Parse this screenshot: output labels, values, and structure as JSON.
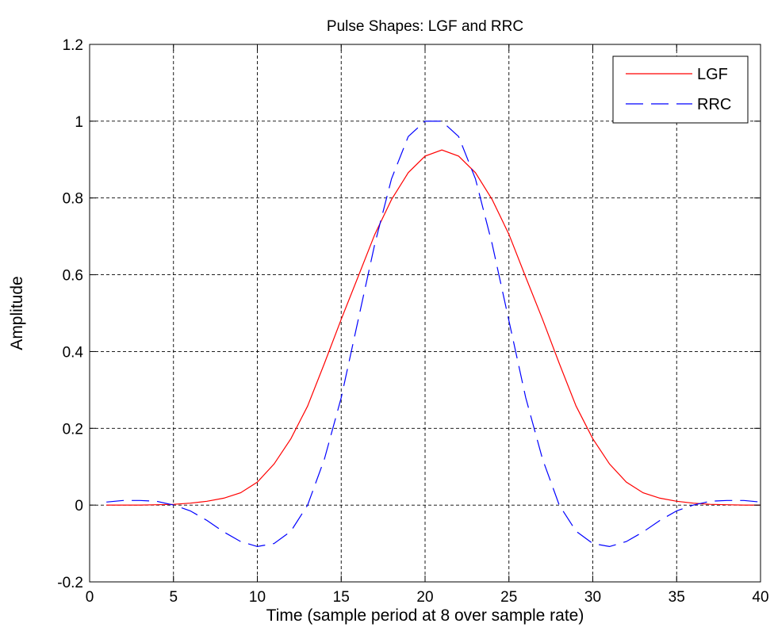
{
  "chart_data": {
    "type": "line",
    "title": "Pulse Shapes: LGF and RRC",
    "xlabel": "Time (sample period at 8 over sample rate)",
    "ylabel": "Amplitude",
    "xlim": [
      0,
      40
    ],
    "ylim": [
      -0.2,
      1.2
    ],
    "xticks": [
      0,
      5,
      10,
      15,
      20,
      25,
      30,
      35,
      40
    ],
    "yticks": [
      -0.2,
      0,
      0.2,
      0.4,
      0.6,
      0.8,
      1,
      1.2
    ],
    "xtick_labels": [
      "0",
      "5",
      "10",
      "15",
      "20",
      "25",
      "30",
      "35",
      "40"
    ],
    "ytick_labels": [
      "-0.2",
      "0",
      "0.2",
      "0.4",
      "0.6",
      "0.8",
      "1",
      "1.2"
    ],
    "grid": true,
    "legend_position": "top-right",
    "series": [
      {
        "name": "LGF",
        "color": "#ff0000",
        "style": "solid",
        "x": [
          1,
          2,
          3,
          4,
          5,
          6,
          7,
          8,
          9,
          10,
          11,
          12,
          13,
          14,
          15,
          16,
          17,
          18,
          19,
          20,
          21,
          22,
          23,
          24,
          25,
          26,
          27,
          28,
          29,
          30,
          31,
          32,
          33,
          34,
          35,
          36,
          37,
          38,
          39,
          40
        ],
        "values": [
          0,
          0,
          0,
          0.001,
          0.002,
          0.005,
          0.01,
          0.018,
          0.032,
          0.06,
          0.107,
          0.173,
          0.258,
          0.369,
          0.484,
          0.594,
          0.705,
          0.796,
          0.866,
          0.909,
          0.925,
          0.909,
          0.866,
          0.796,
          0.705,
          0.594,
          0.484,
          0.369,
          0.258,
          0.173,
          0.107,
          0.06,
          0.032,
          0.018,
          0.01,
          0.005,
          0.002,
          0.001,
          0,
          0
        ]
      },
      {
        "name": "RRC",
        "color": "#0000ff",
        "style": "dashed",
        "x": [
          1,
          2,
          3,
          4,
          5,
          6,
          7,
          8,
          9,
          10,
          11,
          12,
          13,
          14,
          15,
          16,
          17,
          18,
          19,
          20,
          21,
          22,
          23,
          24,
          25,
          26,
          27,
          28,
          29,
          30,
          31,
          32,
          33,
          34,
          35,
          36,
          37,
          38,
          39,
          40
        ],
        "values": [
          0.008,
          0.012,
          0.012,
          0.01,
          0,
          -0.015,
          -0.04,
          -0.07,
          -0.095,
          -0.108,
          -0.1,
          -0.068,
          0,
          0.12,
          0.28,
          0.48,
          0.68,
          0.85,
          0.96,
          1.0,
          1.0,
          0.96,
          0.85,
          0.68,
          0.48,
          0.28,
          0.12,
          0,
          -0.068,
          -0.1,
          -0.108,
          -0.095,
          -0.07,
          -0.04,
          -0.015,
          0,
          0.01,
          0.012,
          0.012,
          0.008
        ]
      }
    ]
  }
}
